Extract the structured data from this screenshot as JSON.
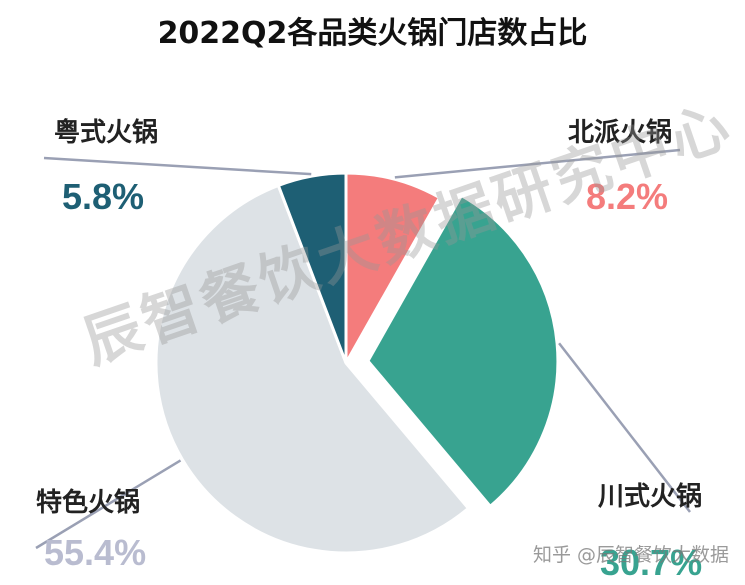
{
  "chart_data": {
    "type": "pie",
    "title": "2022Q2各品类火锅门店数占比",
    "slices": [
      {
        "label": "北派火锅",
        "value": 8.2,
        "display": "8.2%",
        "color": "#f47c7c",
        "exploded": false
      },
      {
        "label": "川式火锅",
        "value": 30.7,
        "display": "30.7%",
        "color": "#38a390",
        "exploded": true
      },
      {
        "label": "特色火锅",
        "value": 55.4,
        "display": "55.4%",
        "color": "#dde2e6",
        "exploded": false
      },
      {
        "label": "粤式火锅",
        "value": 5.8,
        "display": "5.8%",
        "color": "#1e5f74",
        "exploded": false
      }
    ],
    "start_angle": "12 o'clock, clockwise"
  },
  "colors": {
    "title": "#111111",
    "leader_line": "#9aa0b4",
    "pct_special": "#b9bcd0"
  },
  "watermark": "辰智餐饮大数据研究中心",
  "source_mark": "知乎 @辰智餐饮大数据"
}
